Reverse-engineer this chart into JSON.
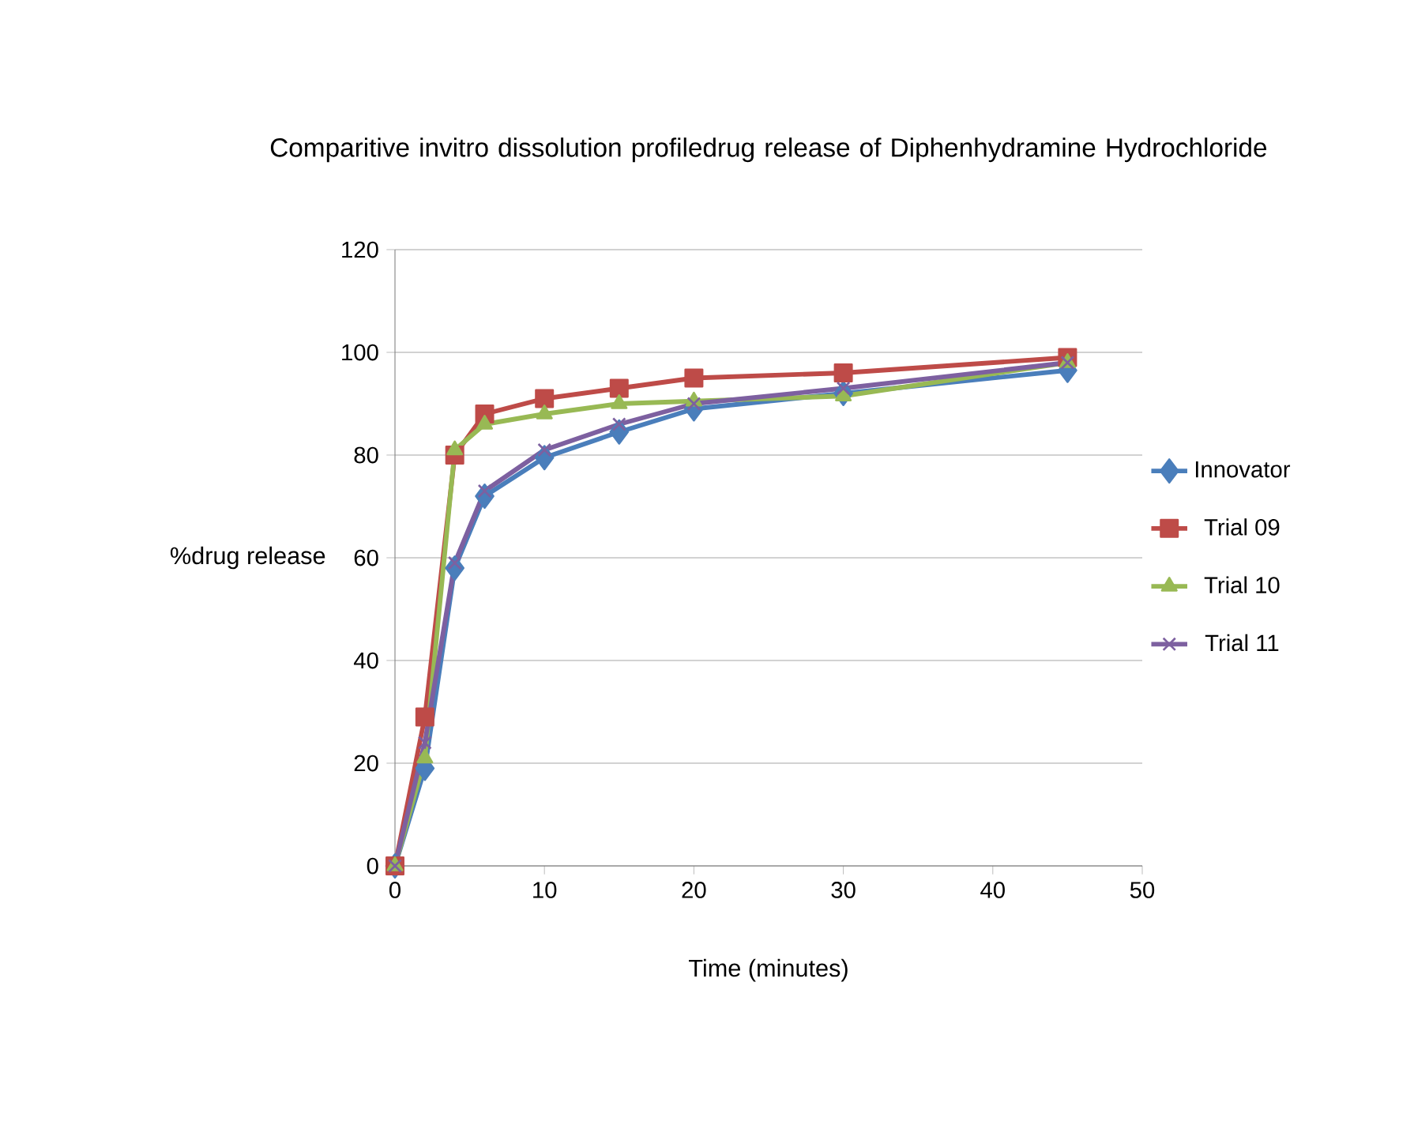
{
  "chart_data": {
    "type": "line",
    "title": "Comparitive invitro dissolution profiledrug  release of Diphenhydramine Hydrochloride",
    "xlabel": "Time (minutes)",
    "ylabel": "%drug release",
    "x": [
      0,
      2,
      4,
      6,
      10,
      15,
      20,
      30,
      45
    ],
    "series": [
      {
        "name": "Innovator",
        "color": "#4a7ebb",
        "marker": "diamond",
        "values": [
          0,
          19,
          58,
          72,
          79.5,
          84.5,
          89,
          92,
          96.5
        ]
      },
      {
        "name": "Trial 09",
        "color": "#be4b48",
        "marker": "square",
        "values": [
          0,
          29,
          80,
          88,
          91,
          93,
          95,
          96,
          99
        ]
      },
      {
        "name": "Trial 10",
        "color": "#98b954",
        "marker": "triangle",
        "values": [
          0,
          21,
          81,
          86,
          88,
          90,
          90.5,
          91.5,
          98
        ]
      },
      {
        "name": "Trial 11",
        "color": "#7d60a0",
        "marker": "cross",
        "values": [
          0,
          24,
          59,
          73,
          81,
          86,
          90,
          93,
          98
        ]
      }
    ],
    "xlim": [
      0,
      50
    ],
    "xticks": [
      0,
      10,
      20,
      30,
      40,
      50
    ],
    "ylim": [
      0,
      120
    ],
    "yticks": [
      0,
      20,
      40,
      60,
      80,
      100,
      120
    ],
    "grid": "y",
    "legend": "right",
    "line_style": "solid"
  }
}
